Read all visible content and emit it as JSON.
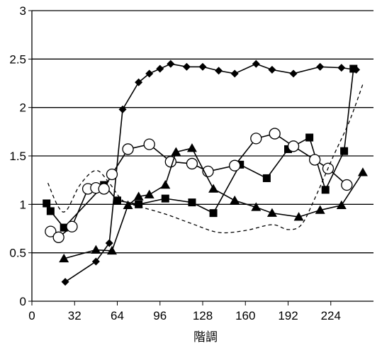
{
  "chart_data": {
    "type": "line",
    "title": "",
    "xlabel": "階調",
    "ylabel": "",
    "xlim": [
      0,
      256
    ],
    "ylim": [
      0,
      3
    ],
    "x_ticks": [
      0,
      32,
      64,
      96,
      128,
      160,
      192,
      224
    ],
    "x_tick_labels": [
      "0",
      "32",
      "64",
      "96",
      "128",
      "160",
      "192",
      "224"
    ],
    "y_ticks": [
      0,
      0.5,
      1,
      1.5,
      2,
      2.5,
      3
    ],
    "y_tick_labels": [
      "0",
      "0.5",
      "1",
      "1.5",
      "2",
      "2.5",
      "3"
    ],
    "grid": {
      "horizontal": true,
      "vertical": false
    },
    "legend": "none",
    "series": [
      {
        "marker": "diamond",
        "line": "solid",
        "points": [
          [
            25,
            0.2
          ],
          [
            48,
            0.41
          ],
          [
            58,
            0.6
          ],
          [
            68,
            1.98
          ],
          [
            80,
            2.26
          ],
          [
            88,
            2.35
          ],
          [
            96,
            2.4
          ],
          [
            104,
            2.45
          ],
          [
            116,
            2.42
          ],
          [
            128,
            2.42
          ],
          [
            140,
            2.38
          ],
          [
            152,
            2.35
          ],
          [
            168,
            2.45
          ],
          [
            180,
            2.39
          ],
          [
            196,
            2.35
          ],
          [
            216,
            2.42
          ],
          [
            232,
            2.41
          ],
          [
            243,
            2.39
          ]
        ]
      },
      {
        "marker": "square",
        "line": "solid",
        "points": [
          [
            11,
            1.01
          ],
          [
            14,
            0.93
          ],
          [
            24,
            0.76
          ],
          [
            54,
            1.2
          ],
          [
            64,
            1.04
          ],
          [
            80,
            1.0
          ],
          [
            100,
            1.06
          ],
          [
            120,
            1.02
          ],
          [
            136,
            0.91
          ],
          [
            156,
            1.41
          ],
          [
            176,
            1.27
          ],
          [
            192,
            1.57
          ],
          [
            208,
            1.69
          ],
          [
            220,
            1.15
          ],
          [
            234,
            1.55
          ],
          [
            241,
            2.4
          ]
        ]
      },
      {
        "marker": "circle",
        "line": "solid",
        "points": [
          [
            14,
            0.72
          ],
          [
            20,
            0.66
          ],
          [
            30,
            0.77
          ],
          [
            42,
            1.16
          ],
          [
            48,
            1.17
          ],
          [
            54,
            1.16
          ],
          [
            60,
            1.31
          ],
          [
            72,
            1.57
          ],
          [
            88,
            1.62
          ],
          [
            104,
            1.44
          ],
          [
            120,
            1.42
          ],
          [
            132,
            1.34
          ],
          [
            152,
            1.4
          ],
          [
            168,
            1.68
          ],
          [
            182,
            1.73
          ],
          [
            196,
            1.6
          ],
          [
            212,
            1.46
          ],
          [
            222,
            1.37
          ],
          [
            236,
            1.2
          ]
        ]
      },
      {
        "marker": "triangle",
        "line": "solid",
        "points": [
          [
            24,
            0.44
          ],
          [
            48,
            0.53
          ],
          [
            60,
            0.52
          ],
          [
            72,
            0.99
          ],
          [
            80,
            1.08
          ],
          [
            88,
            1.1
          ],
          [
            100,
            1.2
          ],
          [
            108,
            1.54
          ],
          [
            120,
            1.58
          ],
          [
            136,
            1.16
          ],
          [
            152,
            1.04
          ],
          [
            168,
            0.97
          ],
          [
            180,
            0.91
          ],
          [
            200,
            0.87
          ],
          [
            216,
            0.94
          ],
          [
            232,
            0.99
          ],
          [
            248,
            1.33
          ]
        ]
      },
      {
        "marker": "none",
        "line": "dashed",
        "points": [
          [
            12,
            1.22
          ],
          [
            20,
            0.97
          ],
          [
            26,
            0.94
          ],
          [
            36,
            1.2
          ],
          [
            48,
            1.35
          ],
          [
            58,
            1.22
          ],
          [
            68,
            1.04
          ],
          [
            80,
            0.98
          ],
          [
            100,
            0.9
          ],
          [
            120,
            0.8
          ],
          [
            140,
            0.71
          ],
          [
            160,
            0.73
          ],
          [
            180,
            0.79
          ],
          [
            192,
            0.74
          ],
          [
            202,
            0.79
          ],
          [
            212,
            1.06
          ],
          [
            226,
            1.5
          ],
          [
            238,
            1.86
          ],
          [
            248,
            2.24
          ]
        ]
      }
    ]
  }
}
